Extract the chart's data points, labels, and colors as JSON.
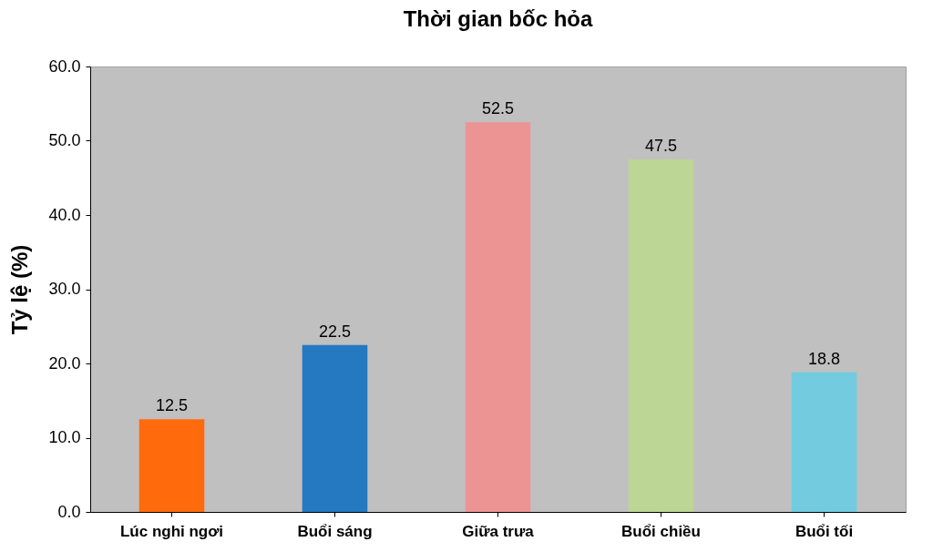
{
  "chart_data": {
    "type": "bar",
    "title": "Thời gian bốc hỏa",
    "ylabel": "Tỷ lệ (%)",
    "categories": [
      "Lúc nghỉ ngơi",
      "Buổi sáng",
      "Giữa trưa",
      "Buổi chiều",
      "Buổi tối"
    ],
    "values": [
      12.5,
      22.5,
      52.5,
      47.5,
      18.8
    ],
    "colors": [
      "#ff6a0d",
      "#2479c0",
      "#ec9494",
      "#bcd696",
      "#72cbdf"
    ],
    "ylim": [
      0,
      60
    ],
    "yticks": [
      {
        "value": 0,
        "label": "0.0"
      },
      {
        "value": 10,
        "label": "10.0"
      },
      {
        "value": 20,
        "label": "20.0"
      },
      {
        "value": 30,
        "label": "30.0"
      },
      {
        "value": 40,
        "label": "40.0"
      },
      {
        "value": 50,
        "label": "50.0"
      },
      {
        "value": 60,
        "label": "60.0"
      }
    ],
    "data_labels": true,
    "grid": false
  }
}
